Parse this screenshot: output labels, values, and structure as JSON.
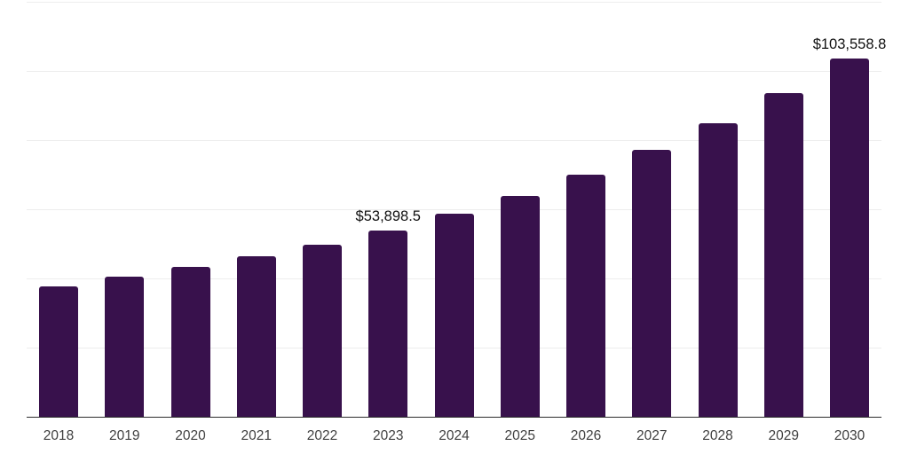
{
  "chart_data": {
    "type": "bar",
    "title": "",
    "xlabel": "",
    "ylabel": "",
    "categories": [
      "2018",
      "2019",
      "2020",
      "2021",
      "2022",
      "2023",
      "2024",
      "2025",
      "2026",
      "2027",
      "2028",
      "2029",
      "2030"
    ],
    "values": [
      37800,
      40500,
      43400,
      46500,
      49800,
      53898.5,
      58800,
      63900,
      70100,
      77100,
      84800,
      93500,
      103558.8
    ],
    "data_labels": {
      "2023": "$53,898.5",
      "2030": "$103,558.8"
    },
    "ylim": [
      0,
      120000
    ],
    "gridline_step": 20000,
    "grid": "horizontal-only",
    "y_tick_labels_visible": false,
    "legend": "none",
    "colors": {
      "bar": "#38114C",
      "gridline": "#EDEDED",
      "axis_line": "#2C2C2C",
      "x_tick_text": "#404040",
      "data_label_text": "#111111",
      "background": "#FFFFFF"
    }
  }
}
